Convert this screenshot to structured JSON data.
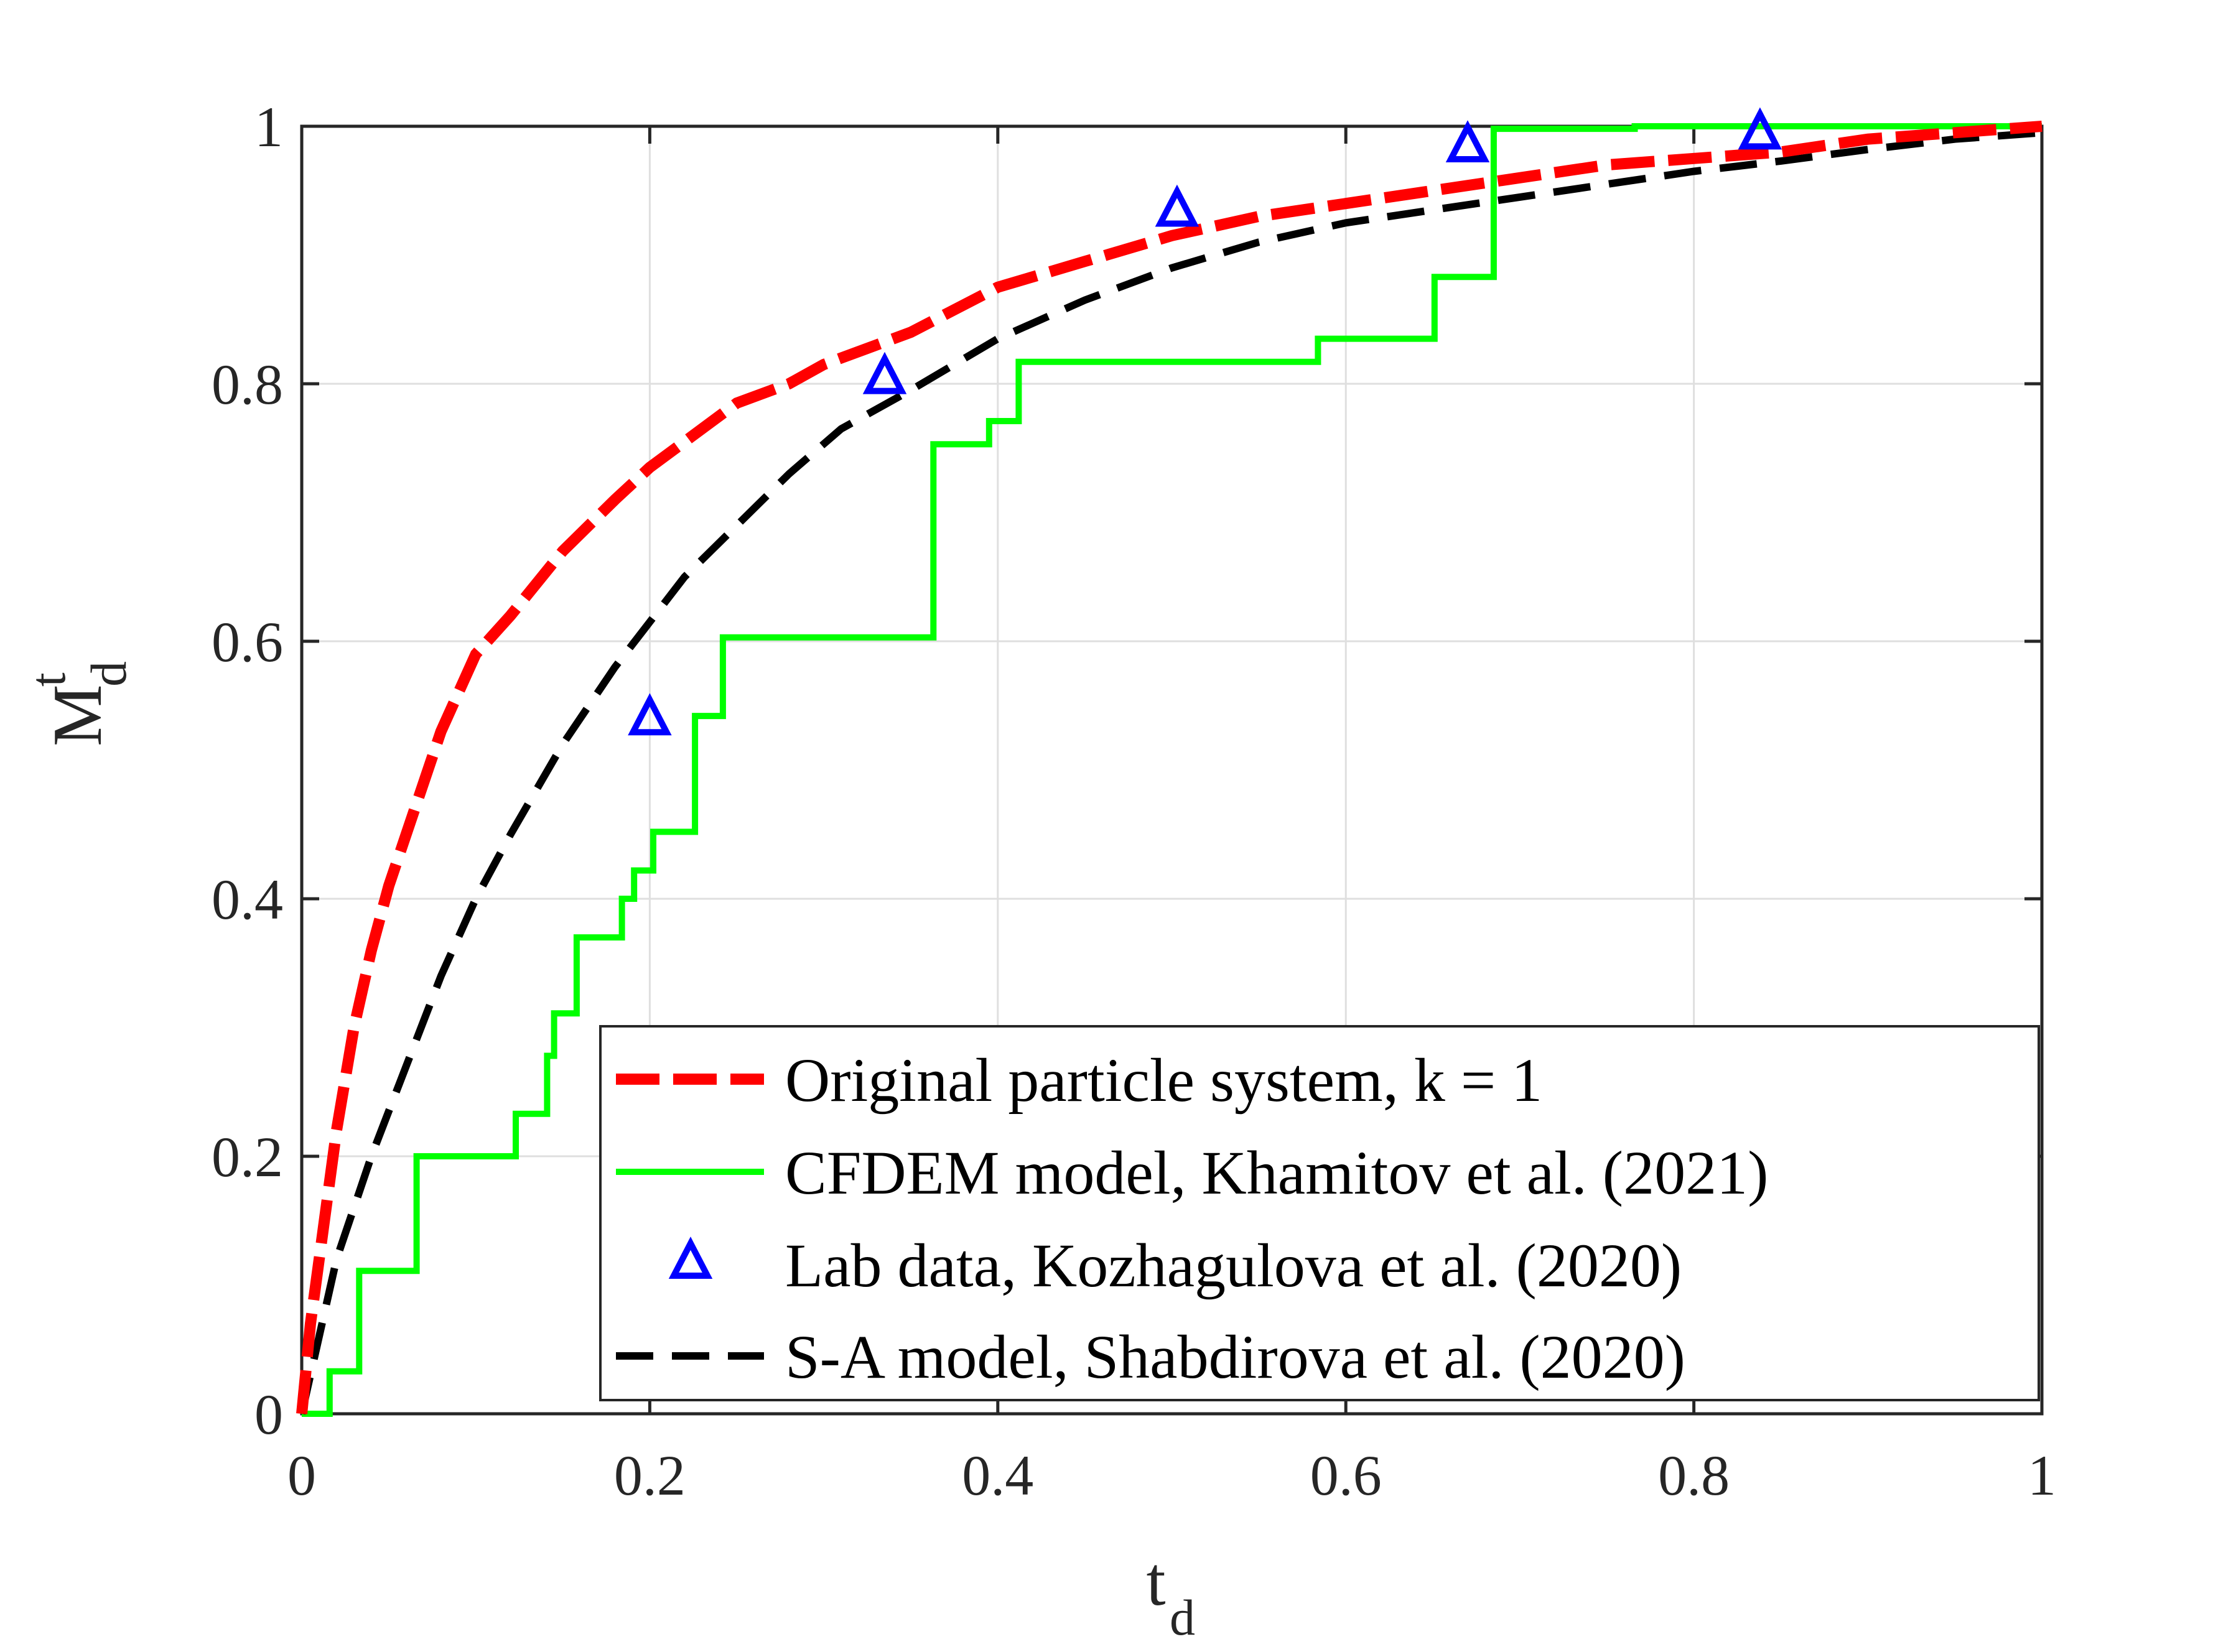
{
  "chart_data": {
    "type": "line",
    "title": "",
    "xlabel": {
      "main": "t",
      "sub": "d"
    },
    "ylabel": {
      "main": "M",
      "sup": "t",
      "sub": "d"
    },
    "xlim": [
      0,
      1
    ],
    "ylim": [
      0,
      1
    ],
    "xticks": [
      0,
      0.2,
      0.4,
      0.6,
      0.8,
      1
    ],
    "yticks": [
      0,
      0.2,
      0.4,
      0.6,
      0.8,
      1
    ],
    "xtick_labels": [
      "0",
      "0.2",
      "0.4",
      "0.6",
      "0.8",
      "1"
    ],
    "ytick_labels": [
      "0",
      "0.2",
      "0.4",
      "0.6",
      "0.8",
      "1"
    ],
    "grid": true,
    "legend_position": "bottom-right",
    "series": [
      {
        "name": "Original particle system, k = 1",
        "color": "#ff0000",
        "style": "dashed-thick",
        "x": [
          0,
          0.005,
          0.01,
          0.02,
          0.03,
          0.04,
          0.05,
          0.06,
          0.08,
          0.1,
          0.12,
          0.15,
          0.18,
          0.2,
          0.22,
          0.25,
          0.28,
          0.3,
          0.33,
          0.35,
          0.4,
          0.45,
          0.5,
          0.55,
          0.6,
          0.65,
          0.7,
          0.75,
          0.8,
          0.85,
          0.9,
          0.95,
          1.0
        ],
        "y": [
          0,
          0.07,
          0.12,
          0.22,
          0.3,
          0.36,
          0.41,
          0.45,
          0.53,
          0.59,
          0.62,
          0.67,
          0.71,
          0.735,
          0.755,
          0.785,
          0.8,
          0.815,
          0.83,
          0.84,
          0.875,
          0.895,
          0.915,
          0.93,
          0.94,
          0.95,
          0.96,
          0.97,
          0.975,
          0.98,
          0.99,
          0.995,
          1.0
        ]
      },
      {
        "name": "CFDEM model, Khamitov et al. (2021)",
        "color": "#00ff00",
        "style": "solid-step",
        "x": [
          0,
          0.016,
          0.016,
          0.033,
          0.033,
          0.066,
          0.066,
          0.123,
          0.123,
          0.141,
          0.141,
          0.145,
          0.145,
          0.158,
          0.158,
          0.184,
          0.184,
          0.191,
          0.191,
          0.202,
          0.202,
          0.226,
          0.226,
          0.242,
          0.242,
          0.363,
          0.363,
          0.395,
          0.395,
          0.412,
          0.412,
          0.584,
          0.584,
          0.651,
          0.651,
          0.685,
          0.685,
          0.766,
          0.766,
          1.0
        ],
        "y": [
          0,
          0,
          0.033,
          0.033,
          0.111,
          0.111,
          0.2,
          0.2,
          0.233,
          0.233,
          0.278,
          0.278,
          0.311,
          0.311,
          0.37,
          0.37,
          0.4,
          0.4,
          0.422,
          0.422,
          0.452,
          0.452,
          0.542,
          0.542,
          0.603,
          0.603,
          0.753,
          0.753,
          0.771,
          0.771,
          0.817,
          0.817,
          0.835,
          0.835,
          0.883,
          0.883,
          0.998,
          0.998,
          1.0,
          1.0
        ]
      },
      {
        "name": "Lab data, Kozhagulova et al. (2020)",
        "color": "#0000ff",
        "style": "triangle-markers",
        "x": [
          0.2,
          0.335,
          0.503,
          0.67,
          0.838
        ],
        "y": [
          0.54,
          0.805,
          0.935,
          0.985,
          0.995
        ]
      },
      {
        "name": "S-A model, Shabdirova et al. (2020)",
        "color": "#000000",
        "style": "dashed",
        "x": [
          0,
          0.02,
          0.04,
          0.06,
          0.08,
          0.1,
          0.12,
          0.15,
          0.18,
          0.2,
          0.22,
          0.25,
          0.28,
          0.31,
          0.35,
          0.4,
          0.45,
          0.5,
          0.55,
          0.6,
          0.65,
          0.7,
          0.75,
          0.8,
          0.85,
          0.9,
          0.95,
          1.0
        ],
        "y": [
          0,
          0.12,
          0.2,
          0.27,
          0.34,
          0.4,
          0.45,
          0.52,
          0.58,
          0.615,
          0.65,
          0.69,
          0.73,
          0.765,
          0.795,
          0.835,
          0.865,
          0.89,
          0.91,
          0.925,
          0.935,
          0.945,
          0.955,
          0.965,
          0.973,
          0.982,
          0.99,
          0.995
        ]
      }
    ]
  }
}
